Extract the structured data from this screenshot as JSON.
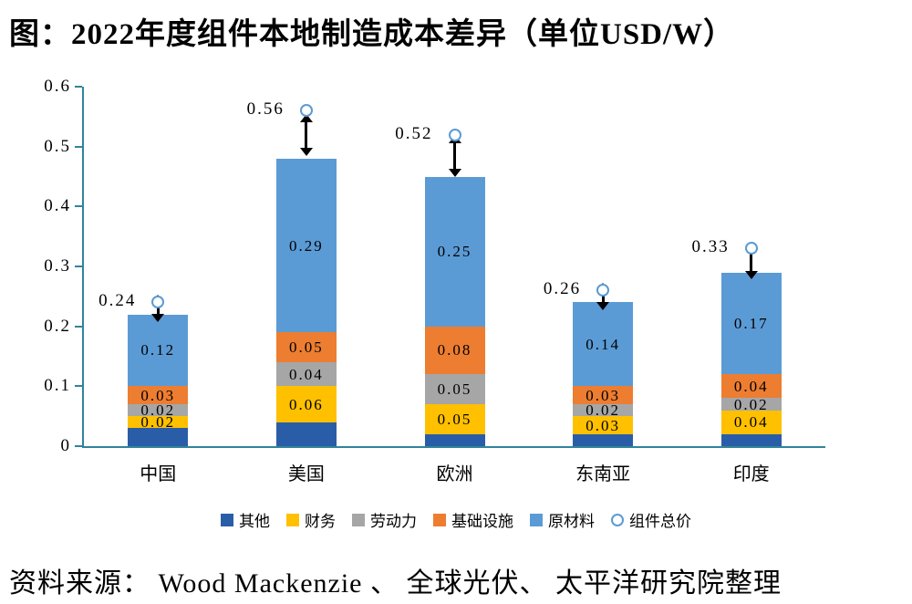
{
  "title": "图：2022年度组件本地制造成本差异（单位USD/W）",
  "source": "资料来源： Wood Mackenzie 、 全球光伏、 太平洋研究院整理",
  "chart_data": {
    "type": "bar",
    "stacked": true,
    "title": "图：2022年度组件本地制造成本差异（单位USD/W）",
    "unit": "USD/W",
    "categories": [
      "中国",
      "美国",
      "欧洲",
      "东南亚",
      "印度"
    ],
    "series": [
      {
        "name": "其他",
        "color": "#2a5da8",
        "show_labels": false,
        "values": [
          0.03,
          0.04,
          0.02,
          0.02,
          0.02
        ]
      },
      {
        "name": "财务",
        "color": "#ffc000",
        "values": [
          0.02,
          0.06,
          0.05,
          0.03,
          0.04
        ]
      },
      {
        "name": "劳动力",
        "color": "#a6a6a6",
        "values": [
          0.02,
          0.04,
          0.05,
          0.02,
          0.02
        ]
      },
      {
        "name": "基础设施",
        "color": "#ed7d31",
        "values": [
          0.03,
          0.05,
          0.08,
          0.03,
          0.04
        ]
      },
      {
        "name": "原材料",
        "color": "#5b9bd5",
        "values": [
          0.12,
          0.29,
          0.25,
          0.14,
          0.17
        ]
      }
    ],
    "totals": {
      "name": "组件总价",
      "marker": "circle-outline",
      "color": "#5b9bd5",
      "values": [
        0.24,
        0.56,
        0.52,
        0.26,
        0.33
      ]
    },
    "bar_stack_tops": [
      0.22,
      0.48,
      0.45,
      0.24,
      0.29
    ],
    "ylim": [
      0,
      0.6
    ],
    "yticks": [
      0,
      0.1,
      0.2,
      0.3,
      0.4,
      0.5,
      0.6
    ],
    "grid": false,
    "legend_position": "bottom",
    "axis_color": "#31849b"
  }
}
